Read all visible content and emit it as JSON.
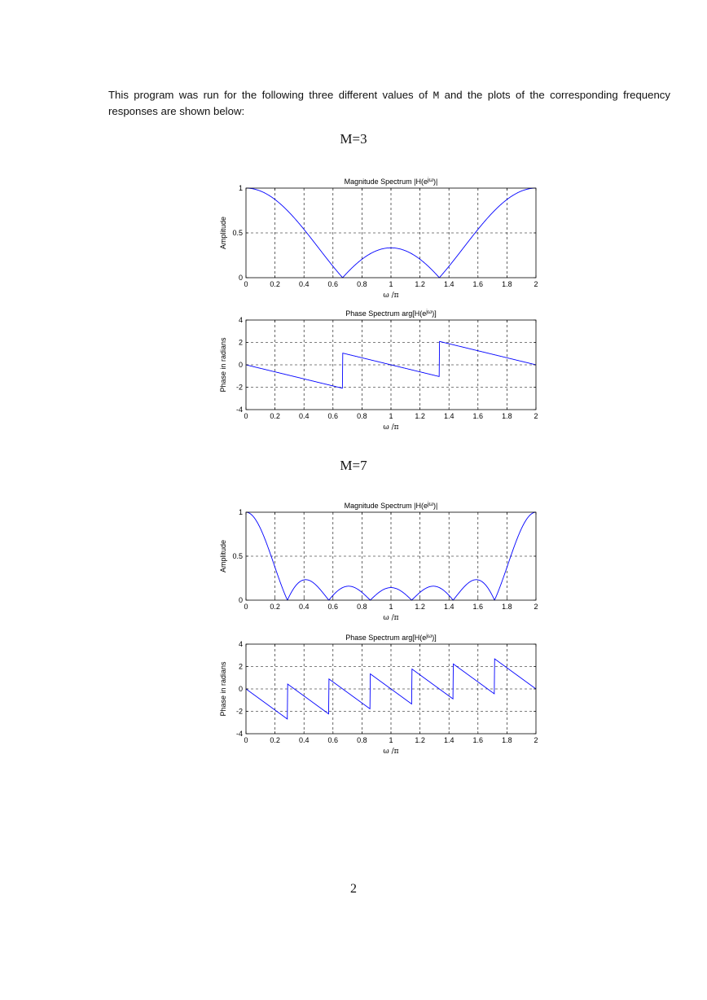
{
  "intro": {
    "before": "This program was run for the following three different values of ",
    "mono": "M",
    "after": " and the plots of the corresponding frequency responses are shown below:"
  },
  "sections": [
    {
      "label": "M=3"
    },
    {
      "label": "M=7"
    }
  ],
  "page_number": "2",
  "chart_data": [
    {
      "type": "line",
      "title": "Magnitude Spectrum |H(e^{jω})|",
      "title_parts": {
        "pre": "Magnitude Spectrum |H(e",
        "sup": "jω",
        "post": ")|"
      },
      "xlabel": "ω /π",
      "ylabel": "Amplitude",
      "xlim": [
        0,
        2
      ],
      "ylim": [
        0,
        1
      ],
      "xticks": [
        "0",
        "0.2",
        "0.4",
        "0.6",
        "0.8",
        "1",
        "1.2",
        "1.4",
        "1.6",
        "1.8",
        "2"
      ],
      "yticks": [
        "0",
        "0.5",
        "1"
      ],
      "grid": true,
      "M": 3,
      "series": [
        {
          "kind": "magnitude",
          "color": "#0000ff"
        }
      ]
    },
    {
      "type": "line",
      "title": "Phase Spectrum arg[H(e^{jω})]",
      "title_parts": {
        "pre": "Phase Spectrum arg[H(e",
        "sup": "jω",
        "post": ")]"
      },
      "xlabel": "ω /π",
      "ylabel": "Phase in radians",
      "xlim": [
        0,
        2
      ],
      "ylim": [
        -4,
        4
      ],
      "xticks": [
        "0",
        "0.2",
        "0.4",
        "0.6",
        "0.8",
        "1",
        "1.2",
        "1.4",
        "1.6",
        "1.8",
        "2"
      ],
      "yticks": [
        "-4",
        "-2",
        "0",
        "2",
        "4"
      ],
      "grid": true,
      "M": 3,
      "series": [
        {
          "kind": "phase",
          "color": "#0000ff"
        }
      ]
    },
    {
      "type": "line",
      "title": "Magnitude Spectrum |H(e^{jω})|",
      "title_parts": {
        "pre": "Magnitude Spectrum |H(e",
        "sup": "jω",
        "post": ")|"
      },
      "xlabel": "ω /π",
      "ylabel": "Amplitude",
      "xlim": [
        0,
        2
      ],
      "ylim": [
        0,
        1
      ],
      "xticks": [
        "0",
        "0.2",
        "0.4",
        "0.6",
        "0.8",
        "1",
        "1.2",
        "1.4",
        "1.6",
        "1.8",
        "2"
      ],
      "yticks": [
        "0",
        "0.5",
        "1"
      ],
      "grid": true,
      "M": 7,
      "series": [
        {
          "kind": "magnitude",
          "color": "#0000ff"
        }
      ]
    },
    {
      "type": "line",
      "title": "Phase Spectrum arg[H(e^{jω})]",
      "title_parts": {
        "pre": "Phase Spectrum arg[H(e",
        "sup": "jω",
        "post": ")]"
      },
      "xlabel": "ω /π",
      "ylabel": "Phase in radians",
      "xlim": [
        0,
        2
      ],
      "ylim": [
        -4,
        4
      ],
      "xticks": [
        "0",
        "0.2",
        "0.4",
        "0.6",
        "0.8",
        "1",
        "1.2",
        "1.4",
        "1.6",
        "1.8",
        "2"
      ],
      "yticks": [
        "-4",
        "-2",
        "0",
        "2",
        "4"
      ],
      "grid": true,
      "M": 7,
      "series": [
        {
          "kind": "phase",
          "color": "#0000ff"
        }
      ]
    }
  ]
}
